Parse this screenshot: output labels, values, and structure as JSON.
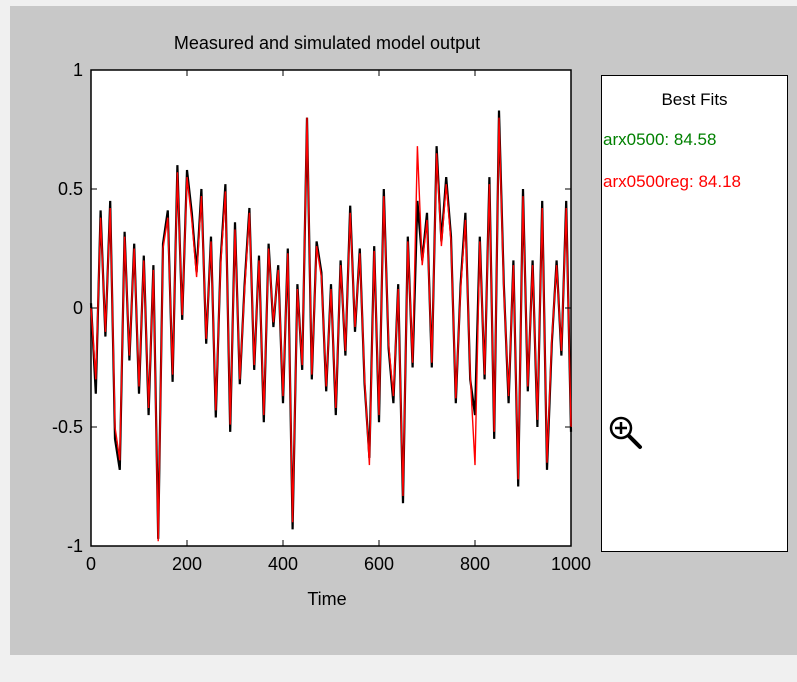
{
  "figure": {
    "background": "#c8c8c8"
  },
  "chart_data": {
    "type": "line",
    "title": "Measured and simulated model output",
    "xlabel": "Time",
    "ylabel": "",
    "xlim": [
      0,
      1000
    ],
    "ylim": [
      -1,
      1
    ],
    "x_ticks": [
      "0",
      "200",
      "400",
      "600",
      "800",
      "1000"
    ],
    "y_ticks": [
      "-1",
      "-0.5",
      "0",
      "0.5",
      "1"
    ],
    "grid": false,
    "series": [
      {
        "name": "",
        "color": "#000000",
        "x": [
          0,
          10,
          20,
          30,
          40,
          50,
          60,
          70,
          80,
          90,
          100,
          110,
          120,
          130,
          140,
          150,
          160,
          170,
          180,
          190,
          200,
          210,
          220,
          230,
          240,
          250,
          260,
          270,
          280,
          290,
          300,
          310,
          320,
          330,
          340,
          350,
          360,
          370,
          380,
          390,
          400,
          410,
          420,
          430,
          440,
          450,
          460,
          470,
          480,
          490,
          500,
          510,
          520,
          530,
          540,
          550,
          560,
          570,
          580,
          590,
          600,
          610,
          620,
          630,
          640,
          650,
          660,
          670,
          680,
          690,
          700,
          710,
          720,
          730,
          740,
          750,
          760,
          770,
          780,
          790,
          800,
          810,
          820,
          830,
          840,
          850,
          860,
          870,
          880,
          890,
          900,
          910,
          920,
          930,
          940,
          950,
          960,
          970,
          980,
          990,
          1000
        ],
        "values": [
          0.02,
          -0.36,
          0.41,
          -0.12,
          0.45,
          -0.55,
          -0.68,
          0.32,
          -0.22,
          0.27,
          -0.36,
          0.22,
          -0.45,
          0.18,
          -0.97,
          0.27,
          0.41,
          -0.31,
          0.6,
          -0.05,
          0.58,
          0.4,
          0.15,
          0.5,
          -0.15,
          0.3,
          -0.46,
          0.2,
          0.52,
          -0.52,
          0.36,
          -0.32,
          0.1,
          0.42,
          -0.26,
          0.22,
          -0.48,
          0.27,
          -0.08,
          0.18,
          -0.4,
          0.25,
          -0.93,
          0.1,
          -0.26,
          0.8,
          -0.3,
          0.28,
          0.15,
          -0.35,
          0.1,
          -0.45,
          0.2,
          -0.2,
          0.43,
          -0.1,
          0.25,
          -0.32,
          -0.63,
          0.26,
          -0.48,
          0.5,
          -0.17,
          -0.4,
          0.1,
          -0.82,
          0.3,
          -0.25,
          0.45,
          0.2,
          0.4,
          -0.25,
          0.68,
          0.28,
          0.55,
          0.3,
          -0.4,
          0.1,
          0.4,
          -0.3,
          -0.45,
          0.3,
          -0.3,
          0.55,
          -0.55,
          0.83,
          0.1,
          -0.4,
          0.2,
          -0.75,
          0.5,
          -0.35,
          0.2,
          -0.5,
          0.45,
          -0.68,
          -0.15,
          0.2,
          -0.2,
          0.45,
          -0.52
        ]
      },
      {
        "name": "",
        "color": "#ff0000",
        "x": [
          0,
          10,
          20,
          30,
          40,
          50,
          60,
          70,
          80,
          90,
          100,
          110,
          120,
          130,
          140,
          150,
          160,
          170,
          180,
          190,
          200,
          210,
          220,
          230,
          240,
          250,
          260,
          270,
          280,
          290,
          300,
          310,
          320,
          330,
          340,
          350,
          360,
          370,
          380,
          390,
          400,
          410,
          420,
          430,
          440,
          450,
          460,
          470,
          480,
          490,
          500,
          510,
          520,
          530,
          540,
          550,
          560,
          570,
          580,
          590,
          600,
          610,
          620,
          630,
          640,
          650,
          660,
          670,
          680,
          690,
          700,
          710,
          720,
          730,
          740,
          750,
          760,
          770,
          780,
          790,
          800,
          810,
          820,
          830,
          840,
          850,
          860,
          870,
          880,
          890,
          900,
          910,
          920,
          930,
          940,
          950,
          960,
          970,
          980,
          990,
          1000
        ],
        "values": [
          0.0,
          -0.3,
          0.38,
          -0.1,
          0.42,
          -0.5,
          -0.64,
          0.3,
          -0.2,
          0.25,
          -0.33,
          0.2,
          -0.42,
          0.16,
          -0.98,
          0.25,
          0.38,
          -0.28,
          0.57,
          -0.03,
          0.55,
          0.37,
          0.13,
          0.47,
          -0.13,
          0.28,
          -0.43,
          0.18,
          0.49,
          -0.49,
          0.33,
          -0.3,
          0.08,
          0.4,
          -0.24,
          0.2,
          -0.45,
          0.25,
          -0.06,
          0.16,
          -0.37,
          0.23,
          -0.9,
          0.08,
          -0.24,
          0.8,
          -0.28,
          0.26,
          0.13,
          -0.33,
          0.08,
          -0.42,
          0.18,
          -0.18,
          0.4,
          -0.08,
          0.23,
          -0.3,
          -0.66,
          0.24,
          -0.45,
          0.47,
          -0.15,
          -0.37,
          0.08,
          -0.79,
          0.28,
          -0.23,
          0.68,
          0.18,
          0.37,
          -0.23,
          0.65,
          0.26,
          0.52,
          0.28,
          -0.38,
          0.08,
          0.37,
          -0.28,
          -0.66,
          0.28,
          -0.28,
          0.52,
          -0.52,
          0.8,
          0.08,
          -0.37,
          0.18,
          -0.72,
          0.47,
          -0.33,
          0.18,
          -0.47,
          0.42,
          -0.65,
          -0.13,
          0.18,
          -0.18,
          0.42,
          -0.5
        ]
      }
    ]
  },
  "bestfits": {
    "title": "Best Fits",
    "items": [
      {
        "label": "arx0500: 84.58",
        "color": "#008000"
      },
      {
        "label": "arx0500reg: 84.18",
        "color": "#ff0000"
      }
    ]
  },
  "cursor": {
    "icon": "zoom-in-cursor-icon"
  }
}
